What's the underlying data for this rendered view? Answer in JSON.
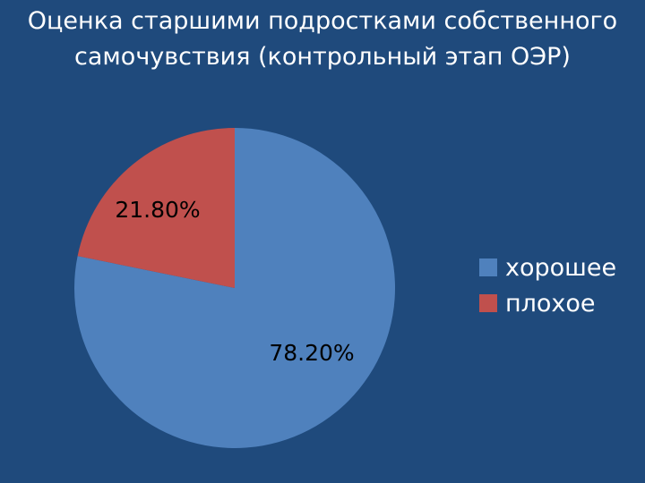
{
  "chart_data": {
    "type": "pie",
    "title_lines": [
      "Оценка старшими подростками собственного",
      "самочувствия (контрольный  этап ОЭР)"
    ],
    "categories": [
      "хорошее",
      "плохое"
    ],
    "values": [
      78.2,
      21.8
    ],
    "data_labels": [
      "78.20%",
      "21.80%"
    ],
    "colors": [
      "#4f81bd",
      "#c0504d"
    ],
    "start": "12 o'clock, clockwise",
    "legend_placement": "right"
  }
}
